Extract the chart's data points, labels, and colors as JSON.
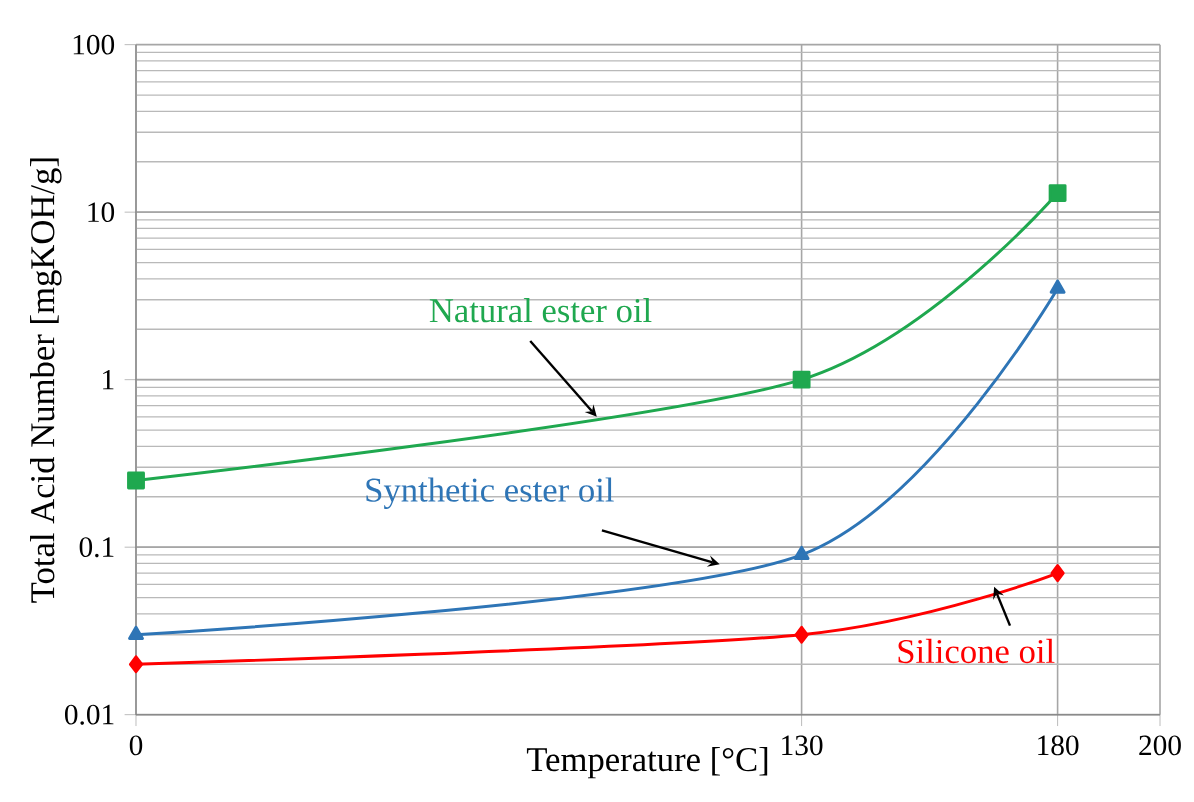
{
  "chart_data": {
    "type": "line",
    "xlabel": "Temperature [°C]",
    "ylabel": "Total Acid Number [mgKOH/g]",
    "x": [
      0,
      130,
      180
    ],
    "series": [
      {
        "name": "Natural ester oil",
        "color": "#1fa84f",
        "marker": "square",
        "values": [
          0.25,
          1.0,
          13
        ]
      },
      {
        "name": "Synthetic ester oil",
        "color": "#2e75b6",
        "marker": "triangle",
        "values": [
          0.03,
          0.09,
          3.5
        ]
      },
      {
        "name": "Silicone oil",
        "color": "#ff0000",
        "marker": "diamond",
        "values": [
          0.02,
          0.03,
          0.07
        ]
      }
    ],
    "xlim": [
      0,
      200
    ],
    "xticks": [
      0,
      130,
      180,
      200
    ],
    "ylim": [
      0.01,
      100
    ],
    "yticks": [
      0.01,
      0.1,
      1,
      10,
      100
    ],
    "log": "y",
    "grid": true,
    "legend": false,
    "line_style": "solid"
  }
}
